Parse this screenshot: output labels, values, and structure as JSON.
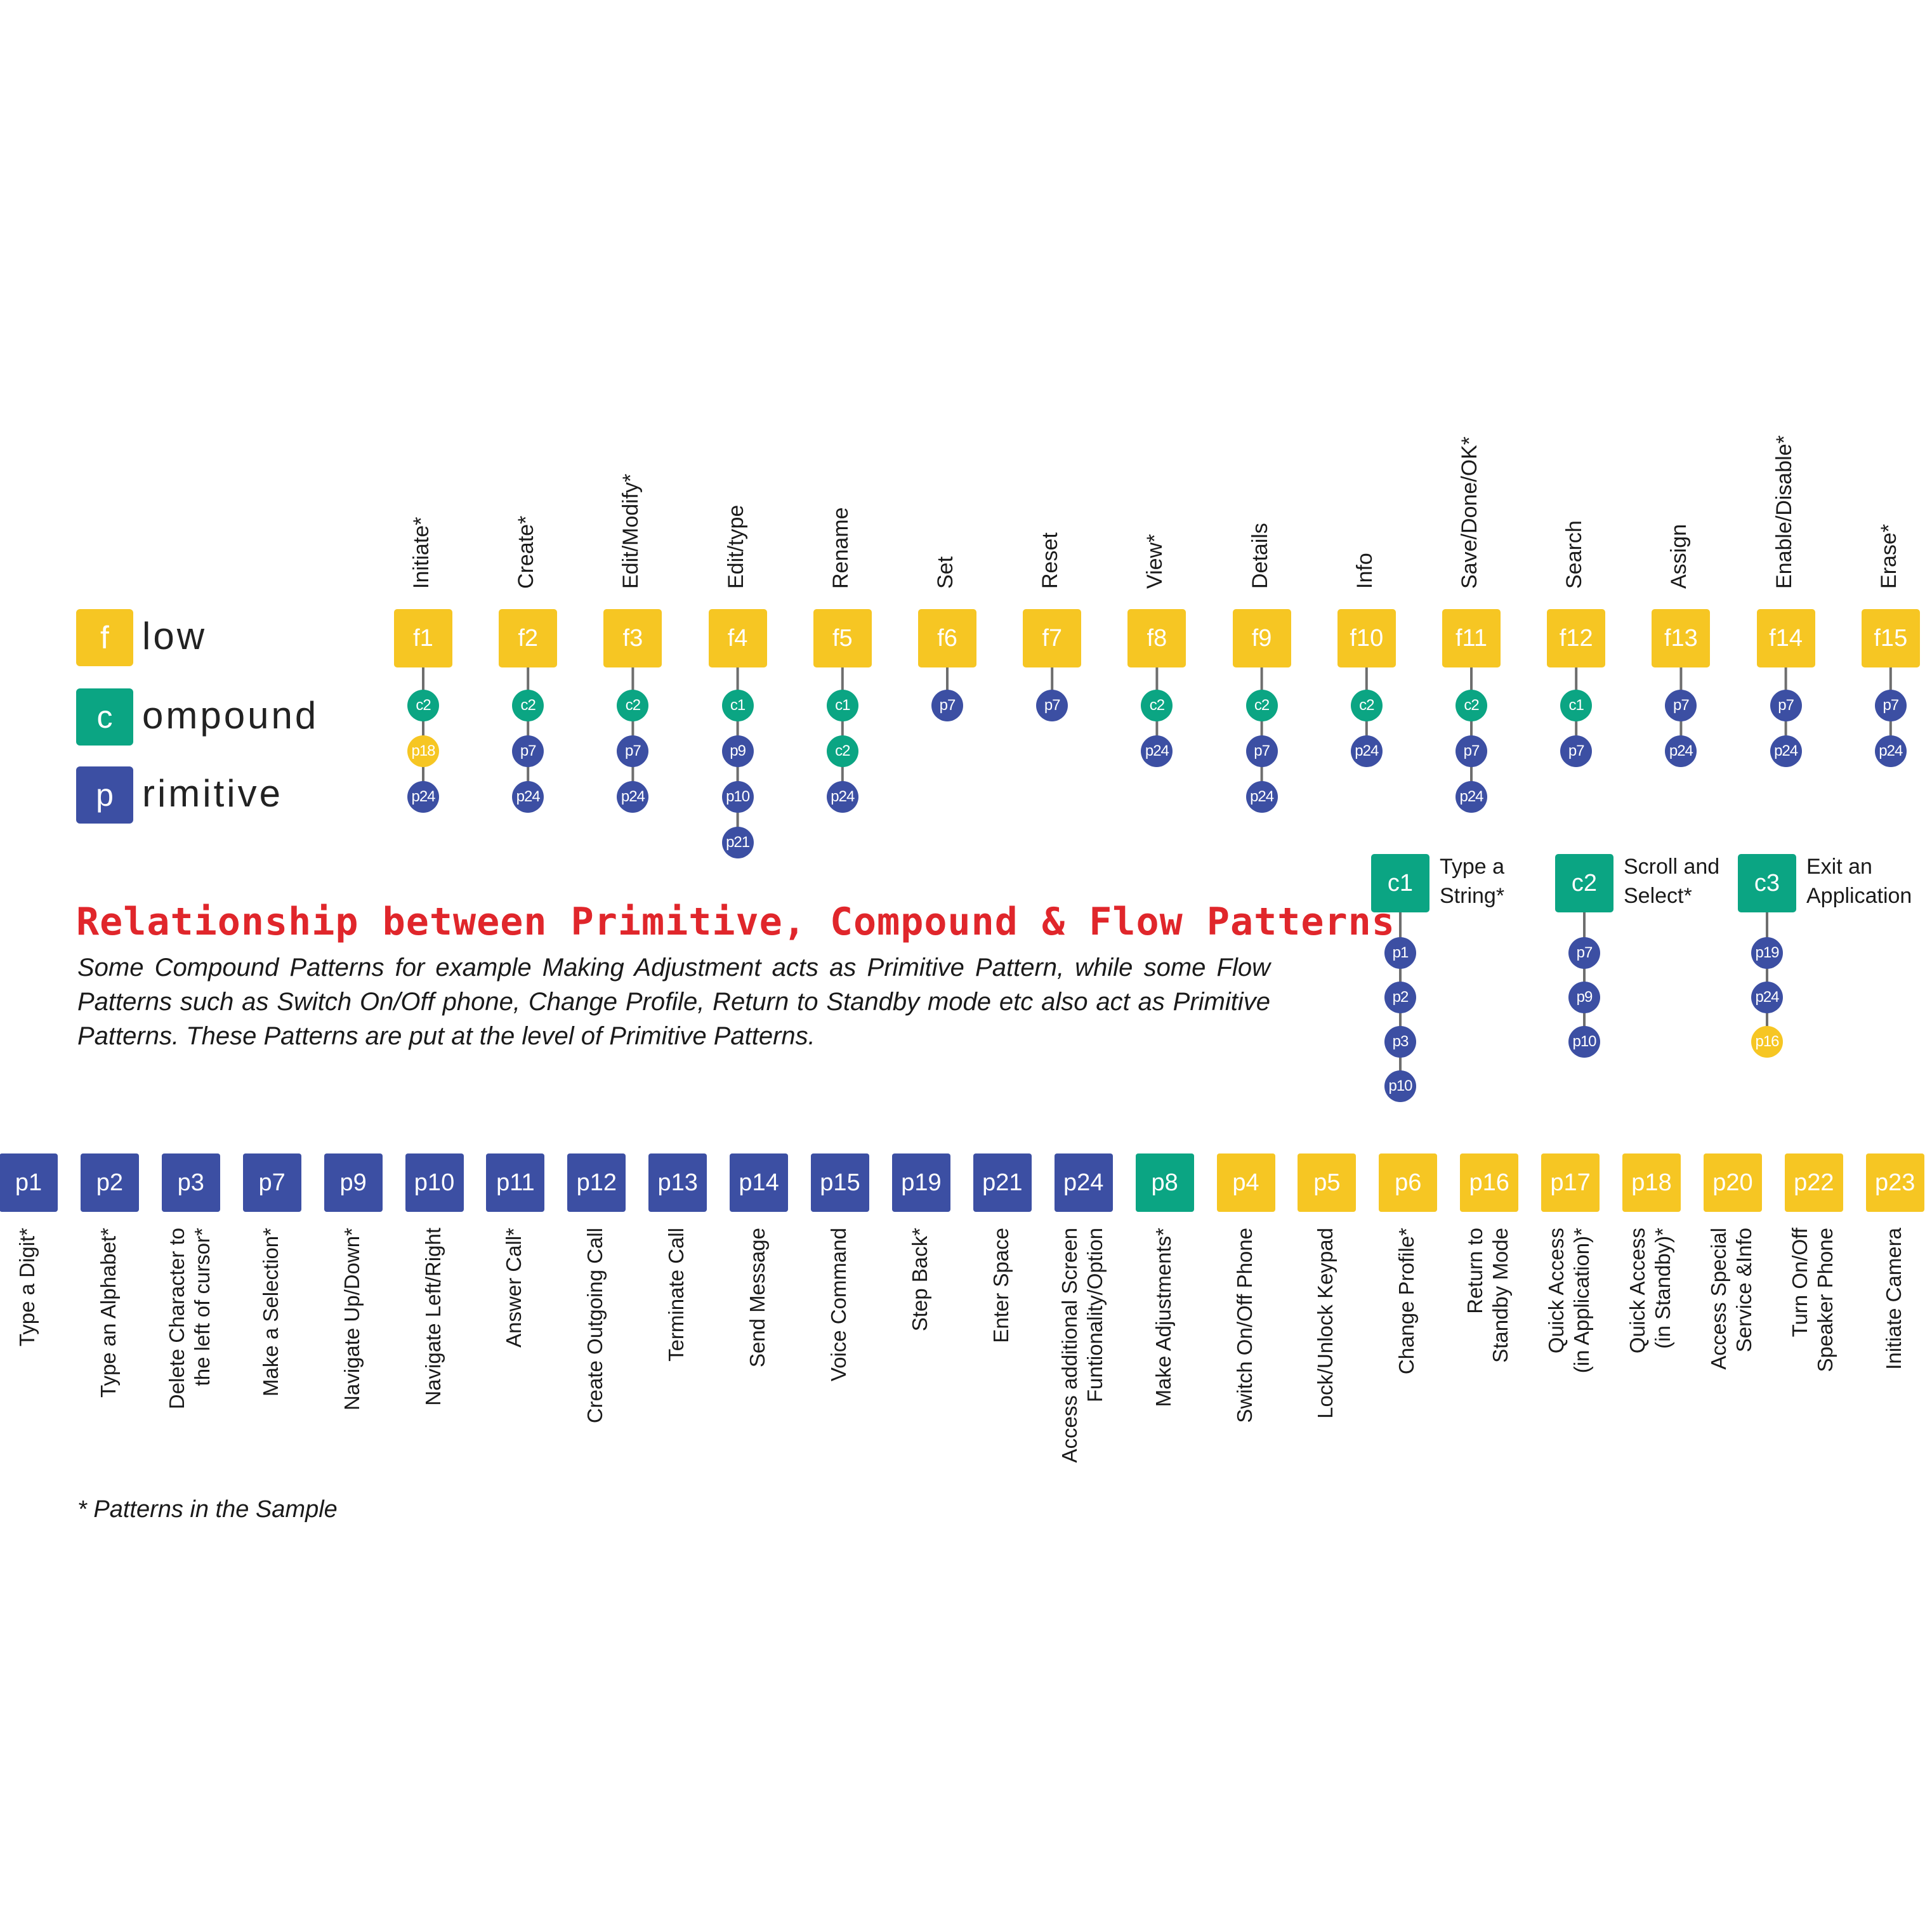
{
  "colors": {
    "flow": "#f6c623",
    "compound": "#0ba583",
    "primitive": "#3c4fa3",
    "title": "#e0262b"
  },
  "legend": [
    {
      "letter": "f",
      "word": "low",
      "kind": "flow"
    },
    {
      "letter": "c",
      "word": "ompound",
      "kind": "compound"
    },
    {
      "letter": "p",
      "word": "rimitive",
      "kind": "primitive"
    }
  ],
  "flows": [
    {
      "id": "f1",
      "label": "Initiate*",
      "nodes": [
        "c2",
        "p18",
        "p24"
      ]
    },
    {
      "id": "f2",
      "label": "Create*",
      "nodes": [
        "c2",
        "p7",
        "p24"
      ]
    },
    {
      "id": "f3",
      "label": "Edit/Modify*",
      "nodes": [
        "c2",
        "p7",
        "p24"
      ]
    },
    {
      "id": "f4",
      "label": "Edit/type",
      "nodes": [
        "c1",
        "p9",
        "p10",
        "p21"
      ]
    },
    {
      "id": "f5",
      "label": "Rename",
      "nodes": [
        "c1",
        "c2",
        "p24"
      ]
    },
    {
      "id": "f6",
      "label": "Set",
      "nodes": [
        "p7"
      ]
    },
    {
      "id": "f7",
      "label": "Reset",
      "nodes": [
        "p7"
      ]
    },
    {
      "id": "f8",
      "label": "View*",
      "nodes": [
        "c2",
        "p24"
      ]
    },
    {
      "id": "f9",
      "label": "Details",
      "nodes": [
        "c2",
        "p7",
        "p24"
      ]
    },
    {
      "id": "f10",
      "label": "Info",
      "nodes": [
        "c2",
        "p24"
      ]
    },
    {
      "id": "f11",
      "label": "Save/Done/OK*",
      "nodes": [
        "c2",
        "p7",
        "p24"
      ]
    },
    {
      "id": "f12",
      "label": "Search",
      "nodes": [
        "c1",
        "p7"
      ]
    },
    {
      "id": "f13",
      "label": "Assign",
      "nodes": [
        "p7",
        "p24"
      ]
    },
    {
      "id": "f14",
      "label": "Enable/Disable*",
      "nodes": [
        "p7",
        "p24"
      ]
    },
    {
      "id": "f15",
      "label": "Erase*",
      "nodes": [
        "p7",
        "p24"
      ]
    }
  ],
  "compounds": [
    {
      "id": "c1",
      "label_lines": [
        "Type a",
        "String*"
      ],
      "nodes": [
        "p1",
        "p2",
        "p3",
        "p10"
      ]
    },
    {
      "id": "c2",
      "label_lines": [
        "Scroll and",
        "Select*"
      ],
      "nodes": [
        "p7",
        "p9",
        "p10"
      ]
    },
    {
      "id": "c3",
      "label_lines": [
        "Exit an",
        "Application"
      ],
      "nodes": [
        "p19",
        "p24",
        "p16"
      ]
    }
  ],
  "title": "Relationship between Primitive, Compound & Flow Patterns",
  "description": "Some Compound Patterns for example Making Adjustment acts as Primitive Pattern, while some Flow Patterns such as Switch On/Off phone, Change Profile, Return to Standby mode etc also act as Primitive Patterns. These Patterns are put at the level of Primitive Patterns.",
  "primitives": [
    {
      "id": "p1",
      "kind": "primitive",
      "label_lines": [
        "Type a Digit*"
      ]
    },
    {
      "id": "p2",
      "kind": "primitive",
      "label_lines": [
        "Type an Alphabet*"
      ]
    },
    {
      "id": "p3",
      "kind": "primitive",
      "label_lines": [
        "Delete Character to",
        "the left of cursor*"
      ]
    },
    {
      "id": "p7",
      "kind": "primitive",
      "label_lines": [
        "Make a Selection*"
      ]
    },
    {
      "id": "p9",
      "kind": "primitive",
      "label_lines": [
        "Navigate Up/Down*"
      ]
    },
    {
      "id": "p10",
      "kind": "primitive",
      "label_lines": [
        "Navigate Left/Right"
      ]
    },
    {
      "id": "p11",
      "kind": "primitive",
      "label_lines": [
        "Answer Call*"
      ]
    },
    {
      "id": "p12",
      "kind": "primitive",
      "label_lines": [
        "Create Outgoing Call"
      ]
    },
    {
      "id": "p13",
      "kind": "primitive",
      "label_lines": [
        "Terminate Call"
      ]
    },
    {
      "id": "p14",
      "kind": "primitive",
      "label_lines": [
        "Send Message"
      ]
    },
    {
      "id": "p15",
      "kind": "primitive",
      "label_lines": [
        "Voice Command"
      ]
    },
    {
      "id": "p19",
      "kind": "primitive",
      "label_lines": [
        "Step Back*"
      ]
    },
    {
      "id": "p21",
      "kind": "primitive",
      "label_lines": [
        "Enter Space"
      ]
    },
    {
      "id": "p24",
      "kind": "primitive",
      "label_lines": [
        "Access additional Screen",
        "Funtionality/Option"
      ]
    },
    {
      "id": "p8",
      "kind": "compound",
      "label_lines": [
        "Make Adjustments*"
      ]
    },
    {
      "id": "p4",
      "kind": "flow",
      "label_lines": [
        "Switch On/Off Phone"
      ]
    },
    {
      "id": "p5",
      "kind": "flow",
      "label_lines": [
        "Lock/Unlock Keypad"
      ]
    },
    {
      "id": "p6",
      "kind": "flow",
      "label_lines": [
        "Change Profile*"
      ]
    },
    {
      "id": "p16",
      "kind": "flow",
      "label_lines": [
        "Return to",
        "Standby Mode"
      ]
    },
    {
      "id": "p17",
      "kind": "flow",
      "label_lines": [
        "Quick Access",
        "(in Application)*"
      ]
    },
    {
      "id": "p18",
      "kind": "flow",
      "label_lines": [
        "Quick Access",
        "(in Standby)*"
      ]
    },
    {
      "id": "p20",
      "kind": "flow",
      "label_lines": [
        "Access Special",
        "Service &Info"
      ]
    },
    {
      "id": "p22",
      "kind": "flow",
      "label_lines": [
        "Turn On/Off",
        "Speaker Phone"
      ]
    },
    {
      "id": "p23",
      "kind": "flow",
      "label_lines": [
        "Initiate Camera"
      ]
    }
  ],
  "footnote": "* Patterns in the Sample"
}
